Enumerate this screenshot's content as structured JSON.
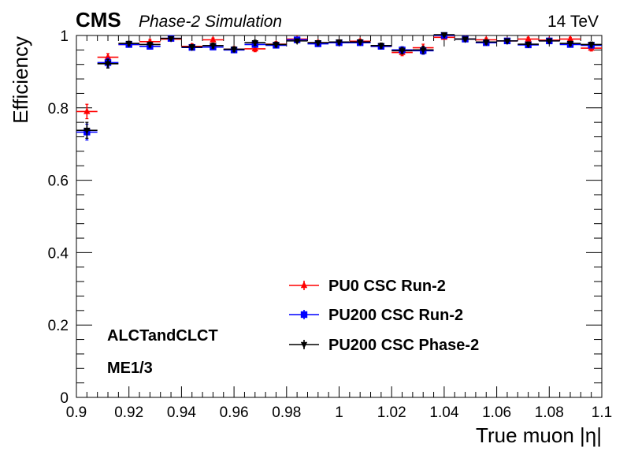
{
  "header": {
    "experiment": "CMS",
    "status": "Phase-2 Simulation",
    "energy": "14 TeV"
  },
  "annotations": [
    "ALCTandCLCT",
    "ME1/3"
  ],
  "chart_data": {
    "type": "scatter",
    "xlabel": "True muon |η|",
    "ylabel": "Efficiency",
    "xlim": [
      0.9,
      1.1
    ],
    "ylim": [
      0,
      1.0
    ],
    "x_ticks": [
      0.9,
      0.92,
      0.94,
      0.96,
      0.98,
      1,
      1.02,
      1.04,
      1.06,
      1.08,
      1.1
    ],
    "y_ticks": [
      0,
      0.2,
      0.4,
      0.6,
      0.8,
      1
    ],
    "x_tick_labels": [
      "0.9",
      "0.92",
      "0.94",
      "0.96",
      "0.98",
      "1",
      "1.02",
      "1.04",
      "1.06",
      "1.08",
      "1.1"
    ],
    "y_tick_labels": [
      "0",
      "0.2",
      "0.4",
      "0.6",
      "0.8",
      "1"
    ],
    "bin_width": 0.008,
    "bin_centers": [
      0.904,
      0.912,
      0.92,
      0.928,
      0.936,
      0.944,
      0.952,
      0.96,
      0.968,
      0.976,
      0.984,
      0.992,
      1.0,
      1.008,
      1.016,
      1.024,
      1.032,
      1.04,
      1.048,
      1.056,
      1.064,
      1.072,
      1.08,
      1.088,
      1.096
    ],
    "legend_position": "bottom-center",
    "series": [
      {
        "name": "PU0 CSC Run-2",
        "color": "#ff0000",
        "marker": "triangle-up",
        "values": [
          0.79,
          0.94,
          0.975,
          0.983,
          0.99,
          0.97,
          0.988,
          0.962,
          0.963,
          0.976,
          0.99,
          0.98,
          0.98,
          0.984,
          0.97,
          0.953,
          0.966,
          0.995,
          0.99,
          0.988,
          0.985,
          0.99,
          0.987,
          0.99,
          0.965
        ],
        "errors": [
          0.02,
          0.01,
          0.006,
          0.006,
          0.004,
          0.007,
          0.005,
          0.007,
          0.008,
          0.007,
          0.005,
          0.006,
          0.006,
          0.006,
          0.007,
          0.009,
          0.01,
          0.005,
          0.005,
          0.005,
          0.005,
          0.005,
          0.005,
          0.005,
          0.008
        ]
      },
      {
        "name": "PU200 CSC Run-2",
        "color": "#0000ff",
        "marker": "square",
        "values": [
          0.733,
          0.925,
          0.975,
          0.97,
          0.992,
          0.967,
          0.968,
          0.96,
          0.975,
          0.973,
          0.988,
          0.977,
          0.98,
          0.98,
          0.97,
          0.96,
          0.958,
          1.0,
          0.99,
          0.98,
          0.985,
          0.974,
          0.985,
          0.975,
          0.973
        ],
        "errors": [
          0.022,
          0.012,
          0.006,
          0.007,
          0.004,
          0.007,
          0.007,
          0.007,
          0.007,
          0.007,
          0.005,
          0.006,
          0.006,
          0.006,
          0.007,
          0.009,
          0.01,
          0.004,
          0.005,
          0.006,
          0.005,
          0.006,
          0.005,
          0.006,
          0.007
        ]
      },
      {
        "name": "PU200 CSC Phase-2",
        "color": "#000000",
        "marker": "triangle-down",
        "values": [
          0.738,
          0.922,
          0.978,
          0.975,
          0.992,
          0.968,
          0.972,
          0.962,
          0.98,
          0.975,
          0.985,
          0.98,
          0.982,
          0.982,
          0.972,
          0.958,
          0.96,
          1.002,
          0.99,
          0.982,
          0.985,
          0.976,
          0.985,
          0.978,
          0.975
        ],
        "errors": [
          0.022,
          0.012,
          0.006,
          0.007,
          0.004,
          0.007,
          0.007,
          0.007,
          0.007,
          0.007,
          0.005,
          0.006,
          0.006,
          0.006,
          0.007,
          0.009,
          0.01,
          0.004,
          0.005,
          0.006,
          0.005,
          0.006,
          0.005,
          0.006,
          0.007
        ]
      }
    ]
  }
}
